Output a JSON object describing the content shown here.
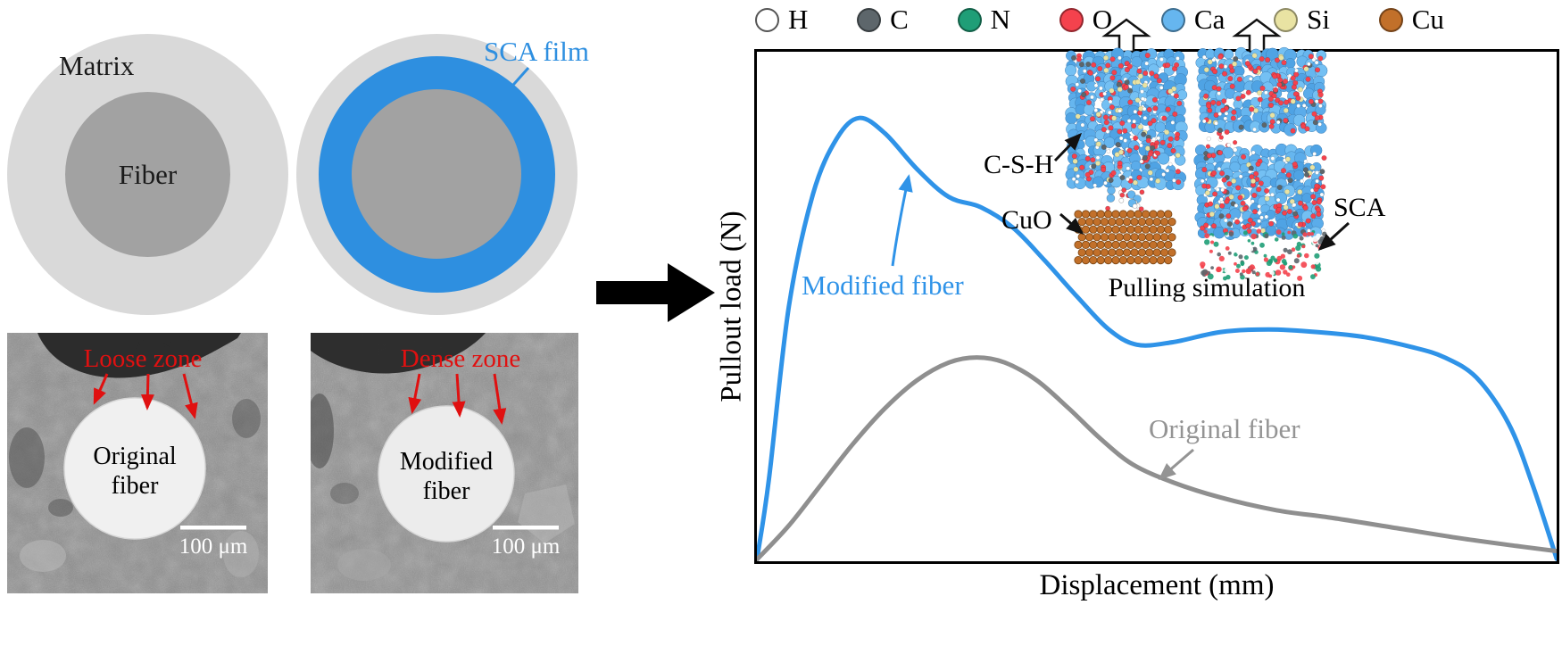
{
  "schematic": {
    "matrix_label": "Matrix",
    "fiber_label": "Fiber",
    "sca_film_label": "SCA film",
    "matrix_color": "#d9d9d9",
    "fiber_color": "#a2a2a2",
    "sca_film_color": "#2e8fe0"
  },
  "sem": [
    {
      "zone_label": "Loose zone",
      "fiber_line1": "Original",
      "fiber_line2": "fiber",
      "scale_label": "100 μm"
    },
    {
      "zone_label": "Dense zone",
      "fiber_line1": "Modified",
      "fiber_line2": "fiber",
      "scale_label": "100 μm"
    }
  ],
  "legend": {
    "items": [
      {
        "symbol": "H",
        "color": "#ffffff"
      },
      {
        "symbol": "C",
        "color": "#5d666b"
      },
      {
        "symbol": "N",
        "color": "#1f9e77"
      },
      {
        "symbol": "O",
        "color": "#f4424d"
      },
      {
        "symbol": "Ca",
        "color": "#66b6ef"
      },
      {
        "symbol": "Si",
        "color": "#e9e3a3"
      },
      {
        "symbol": "Cu",
        "color": "#c2702a"
      }
    ]
  },
  "inset": {
    "csh_label": "C-S-H",
    "cuo_label": "CuO",
    "sca_label": "SCA",
    "caption": "Pulling simulation"
  },
  "chart_data": {
    "type": "line",
    "title": "",
    "xlabel": "Displacement (mm)",
    "ylabel": "Pullout load (N)",
    "xlim": [
      0,
      1
    ],
    "ylim": [
      0,
      1
    ],
    "axes_frame": "box",
    "grid": false,
    "series": [
      {
        "name": "Modified fiber",
        "color": "#2f93e8",
        "x": [
          0,
          0.015,
          0.04,
          0.07,
          0.1,
          0.128,
          0.16,
          0.2,
          0.24,
          0.28,
          0.32,
          0.36,
          0.4,
          0.44,
          0.475,
          0.52,
          0.58,
          0.64,
          0.7,
          0.76,
          0.82,
          0.86,
          0.9,
          0.94,
          0.97,
          1.0
        ],
        "y": [
          0,
          0.16,
          0.5,
          0.72,
          0.83,
          0.87,
          0.84,
          0.77,
          0.715,
          0.695,
          0.655,
          0.59,
          0.52,
          0.455,
          0.425,
          0.43,
          0.45,
          0.455,
          0.45,
          0.44,
          0.42,
          0.4,
          0.36,
          0.27,
          0.15,
          0.005
        ]
      },
      {
        "name": "Original fiber",
        "color": "#8f8f8f",
        "x": [
          0,
          0.04,
          0.08,
          0.12,
          0.16,
          0.2,
          0.24,
          0.275,
          0.31,
          0.35,
          0.39,
          0.43,
          0.47,
          0.52,
          0.58,
          0.65,
          0.72,
          0.8,
          0.88,
          0.95,
          1.0
        ],
        "y": [
          0,
          0.07,
          0.15,
          0.23,
          0.3,
          0.355,
          0.39,
          0.4,
          0.39,
          0.355,
          0.3,
          0.24,
          0.19,
          0.155,
          0.125,
          0.1,
          0.085,
          0.065,
          0.045,
          0.03,
          0.02
        ]
      }
    ]
  }
}
